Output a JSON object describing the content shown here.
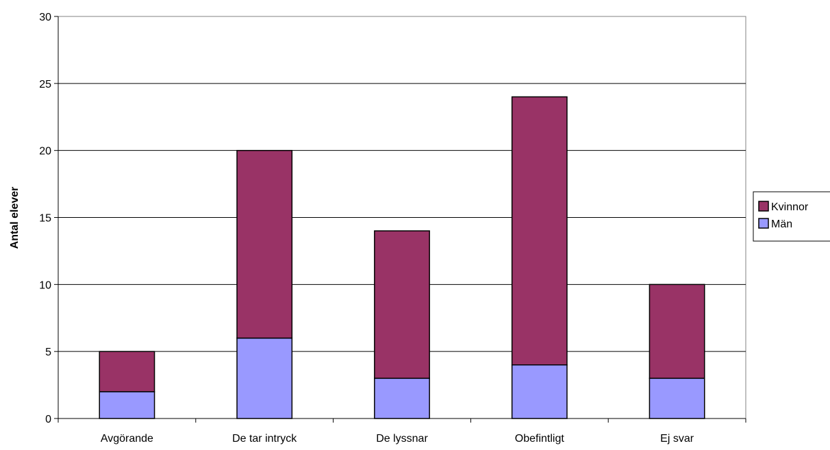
{
  "chart_data": {
    "type": "bar",
    "stacked": true,
    "categories": [
      "Avgörande",
      "De tar intryck",
      "De lyssnar",
      "Obefintligt",
      "Ej svar"
    ],
    "series": [
      {
        "name": "Män",
        "values": [
          2,
          6,
          3,
          4,
          3
        ],
        "color": "#9999ff"
      },
      {
        "name": "Kvinnor",
        "values": [
          3,
          14,
          11,
          20,
          7
        ],
        "color": "#993366"
      }
    ],
    "legend_order": [
      "Kvinnor",
      "Män"
    ],
    "title": "",
    "xlabel": "",
    "ylabel": "Antal elever",
    "ylim": [
      0,
      30
    ],
    "yticks": [
      0,
      5,
      10,
      15,
      20,
      25,
      30
    ],
    "grid": true,
    "legend_position": "right"
  }
}
